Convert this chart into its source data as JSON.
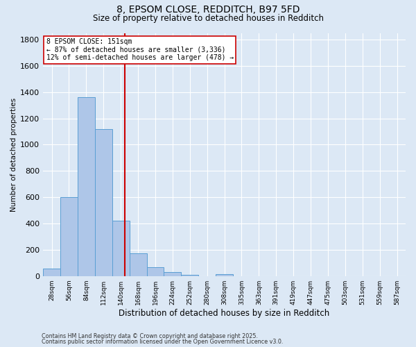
{
  "title1": "8, EPSOM CLOSE, REDDITCH, B97 5FD",
  "title2": "Size of property relative to detached houses in Redditch",
  "xlabel": "Distribution of detached houses by size in Redditch",
  "ylabel": "Number of detached properties",
  "bin_labels": [
    "28sqm",
    "56sqm",
    "84sqm",
    "112sqm",
    "140sqm",
    "168sqm",
    "196sqm",
    "224sqm",
    "252sqm",
    "280sqm",
    "308sqm",
    "335sqm",
    "363sqm",
    "391sqm",
    "419sqm",
    "447sqm",
    "475sqm",
    "503sqm",
    "531sqm",
    "559sqm",
    "587sqm"
  ],
  "bar_values": [
    55,
    600,
    1360,
    1120,
    420,
    175,
    65,
    30,
    8,
    0,
    12,
    0,
    0,
    0,
    0,
    0,
    0,
    0,
    0,
    0,
    0
  ],
  "bar_color": "#aec6e8",
  "bar_edge_color": "#5a9fd4",
  "vline_x_bin": 4.72,
  "vline_color": "#cc0000",
  "annotation_title": "8 EPSOM CLOSE: 151sqm",
  "annotation_line1": "← 87% of detached houses are smaller (3,336)",
  "annotation_line2": "12% of semi-detached houses are larger (478) →",
  "annotation_box_color": "#ffffff",
  "annotation_box_edge": "#cc0000",
  "ylim": [
    0,
    1850
  ],
  "yticks": [
    0,
    200,
    400,
    600,
    800,
    1000,
    1200,
    1400,
    1600,
    1800
  ],
  "footer1": "Contains HM Land Registry data © Crown copyright and database right 2025.",
  "footer2": "Contains public sector information licensed under the Open Government Licence v3.0.",
  "bg_color": "#dce8f5",
  "grid_color": "#ffffff"
}
